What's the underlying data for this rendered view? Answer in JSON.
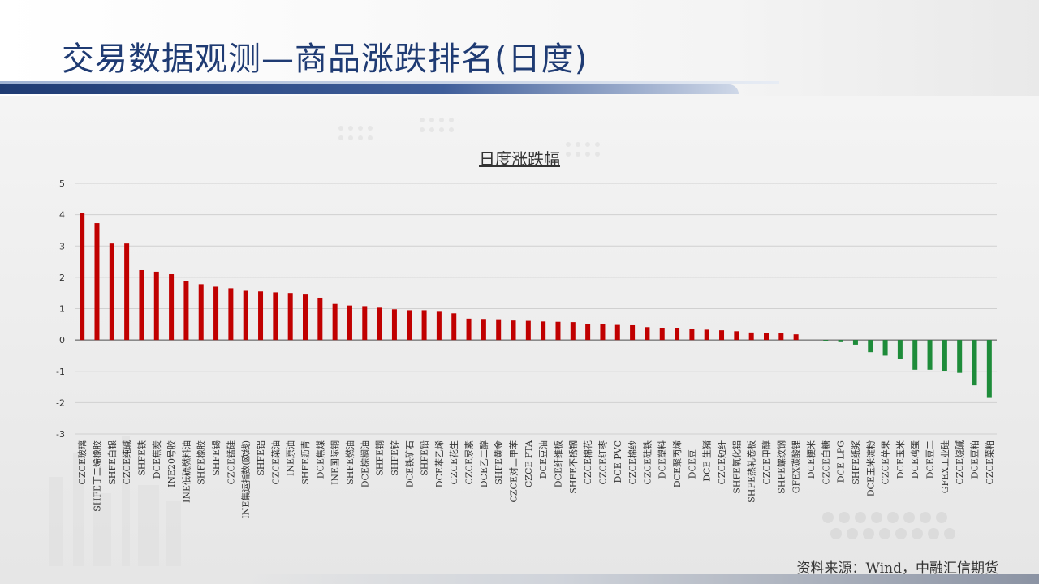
{
  "page": {
    "title": "交易数据观测—商品涨跌排名(日度)",
    "source": "资料来源：Wind，中融汇信期货"
  },
  "chart_data": {
    "type": "bar",
    "title": "日度涨跌幅",
    "xlabel": "",
    "ylabel": "",
    "ylim": [
      -3,
      5
    ],
    "yticks": [
      5,
      4,
      3,
      2,
      1,
      0,
      -1,
      -2,
      -3
    ],
    "grid": true,
    "colors": {
      "positive": "#c00000",
      "negative": "#1e8c3a",
      "axis": "#555555",
      "grid": "#d0d0d0"
    },
    "categories": [
      "CZCE玻璃",
      "SHFE丁二烯橡胶",
      "SHFE白银",
      "CZCE纯碱",
      "SHFE铁",
      "DCE焦炭",
      "INE20号胶",
      "INE低硫燃料油",
      "SHFE橡胶",
      "SHFE锡",
      "CZCE锰硅",
      "INE集运指数(欧线)",
      "SHFE铝",
      "CZCE菜油",
      "INE原油",
      "SHFE沥青",
      "DCE焦煤",
      "INE国际铜",
      "SHFE燃油",
      "DCE棕榈油",
      "SHFE铜",
      "SHFE锌",
      "DCE铁矿石",
      "SHFE铅",
      "DCE苯乙烯",
      "CZCE花生",
      "CZCE尿素",
      "DCE乙二醇",
      "SHFE黄金",
      "CZCE对二甲苯",
      "CZCE PTA",
      "DCE豆油",
      "DCE纤维板",
      "SHFE不锈钢",
      "CZCE棉花",
      "CZCE红枣",
      "DCE PVC",
      "CZCE棉纱",
      "CZCE硅铁",
      "DCE塑料",
      "DCE聚丙烯",
      "DCE豆一",
      "DCE 生猪",
      "CZCE短纤",
      "SHFE氧化铝",
      "SHFE热轧卷板",
      "CZCE甲醇",
      "SHFE螺纹钢",
      "GFEX碳酸锂",
      "DCE粳米",
      "CZCE白糖",
      "DCE LPG",
      "SHFE纸浆",
      "DCE玉米淀粉",
      "CZCE苹果",
      "DCE玉米",
      "DCE鸡蛋",
      "DCE豆二",
      "GFEX工业硅",
      "CZCE烧碱",
      "DCE豆粕",
      "CZCE菜粕"
    ],
    "values": [
      4.05,
      3.73,
      3.08,
      3.08,
      2.23,
      2.18,
      2.1,
      1.87,
      1.78,
      1.7,
      1.65,
      1.57,
      1.55,
      1.52,
      1.5,
      1.45,
      1.35,
      1.15,
      1.1,
      1.08,
      1.03,
      0.98,
      0.95,
      0.95,
      0.9,
      0.85,
      0.68,
      0.67,
      0.66,
      0.62,
      0.61,
      0.59,
      0.58,
      0.57,
      0.5,
      0.5,
      0.48,
      0.47,
      0.41,
      0.38,
      0.37,
      0.34,
      0.33,
      0.31,
      0.28,
      0.24,
      0.23,
      0.21,
      0.18,
      0.0,
      -0.04,
      -0.07,
      -0.15,
      -0.39,
      -0.5,
      -0.6,
      -0.95,
      -0.95,
      -1.0,
      -1.05,
      -1.45,
      -1.85
    ]
  }
}
